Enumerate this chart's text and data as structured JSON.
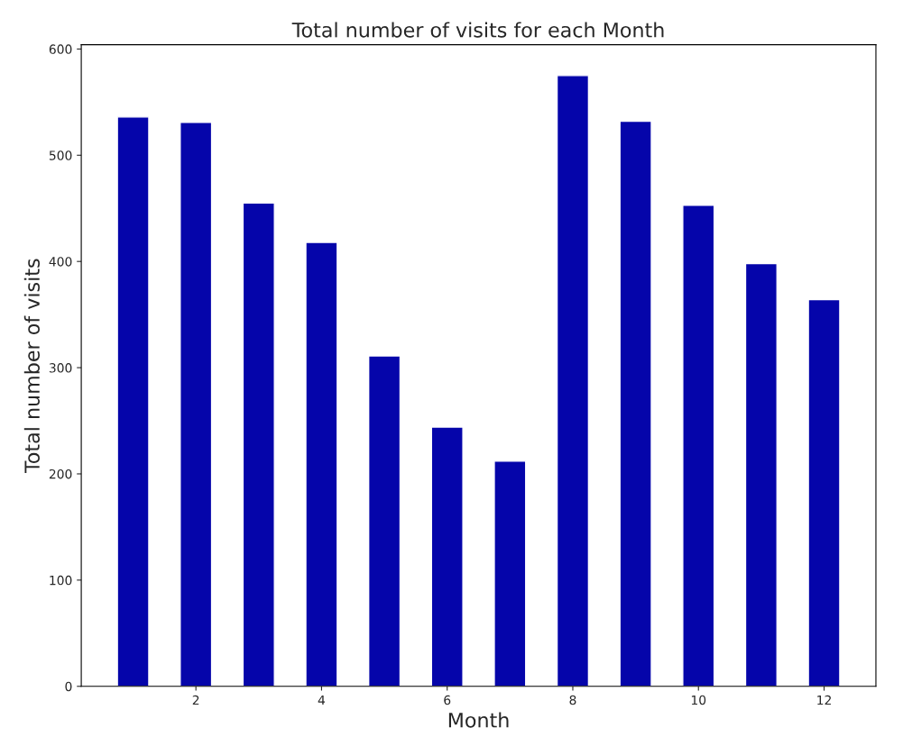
{
  "chart_data": {
    "type": "bar",
    "title": "Total number of visits for each Month",
    "xlabel": "Month",
    "ylabel": "Total number of visits",
    "x": [
      1,
      2,
      3,
      4,
      5,
      6,
      7,
      8,
      9,
      10,
      11,
      12
    ],
    "values": [
      536,
      531,
      455,
      418,
      311,
      244,
      212,
      575,
      532,
      453,
      398,
      364
    ],
    "color": "#0505aa",
    "xlim": [
      0.175,
      12.825
    ],
    "xticks": [
      2,
      4,
      6,
      8,
      10,
      12
    ],
    "ylim": [
      0,
      604
    ],
    "yticks": [
      0,
      100,
      200,
      300,
      400,
      500,
      600
    ],
    "grid": false
  }
}
